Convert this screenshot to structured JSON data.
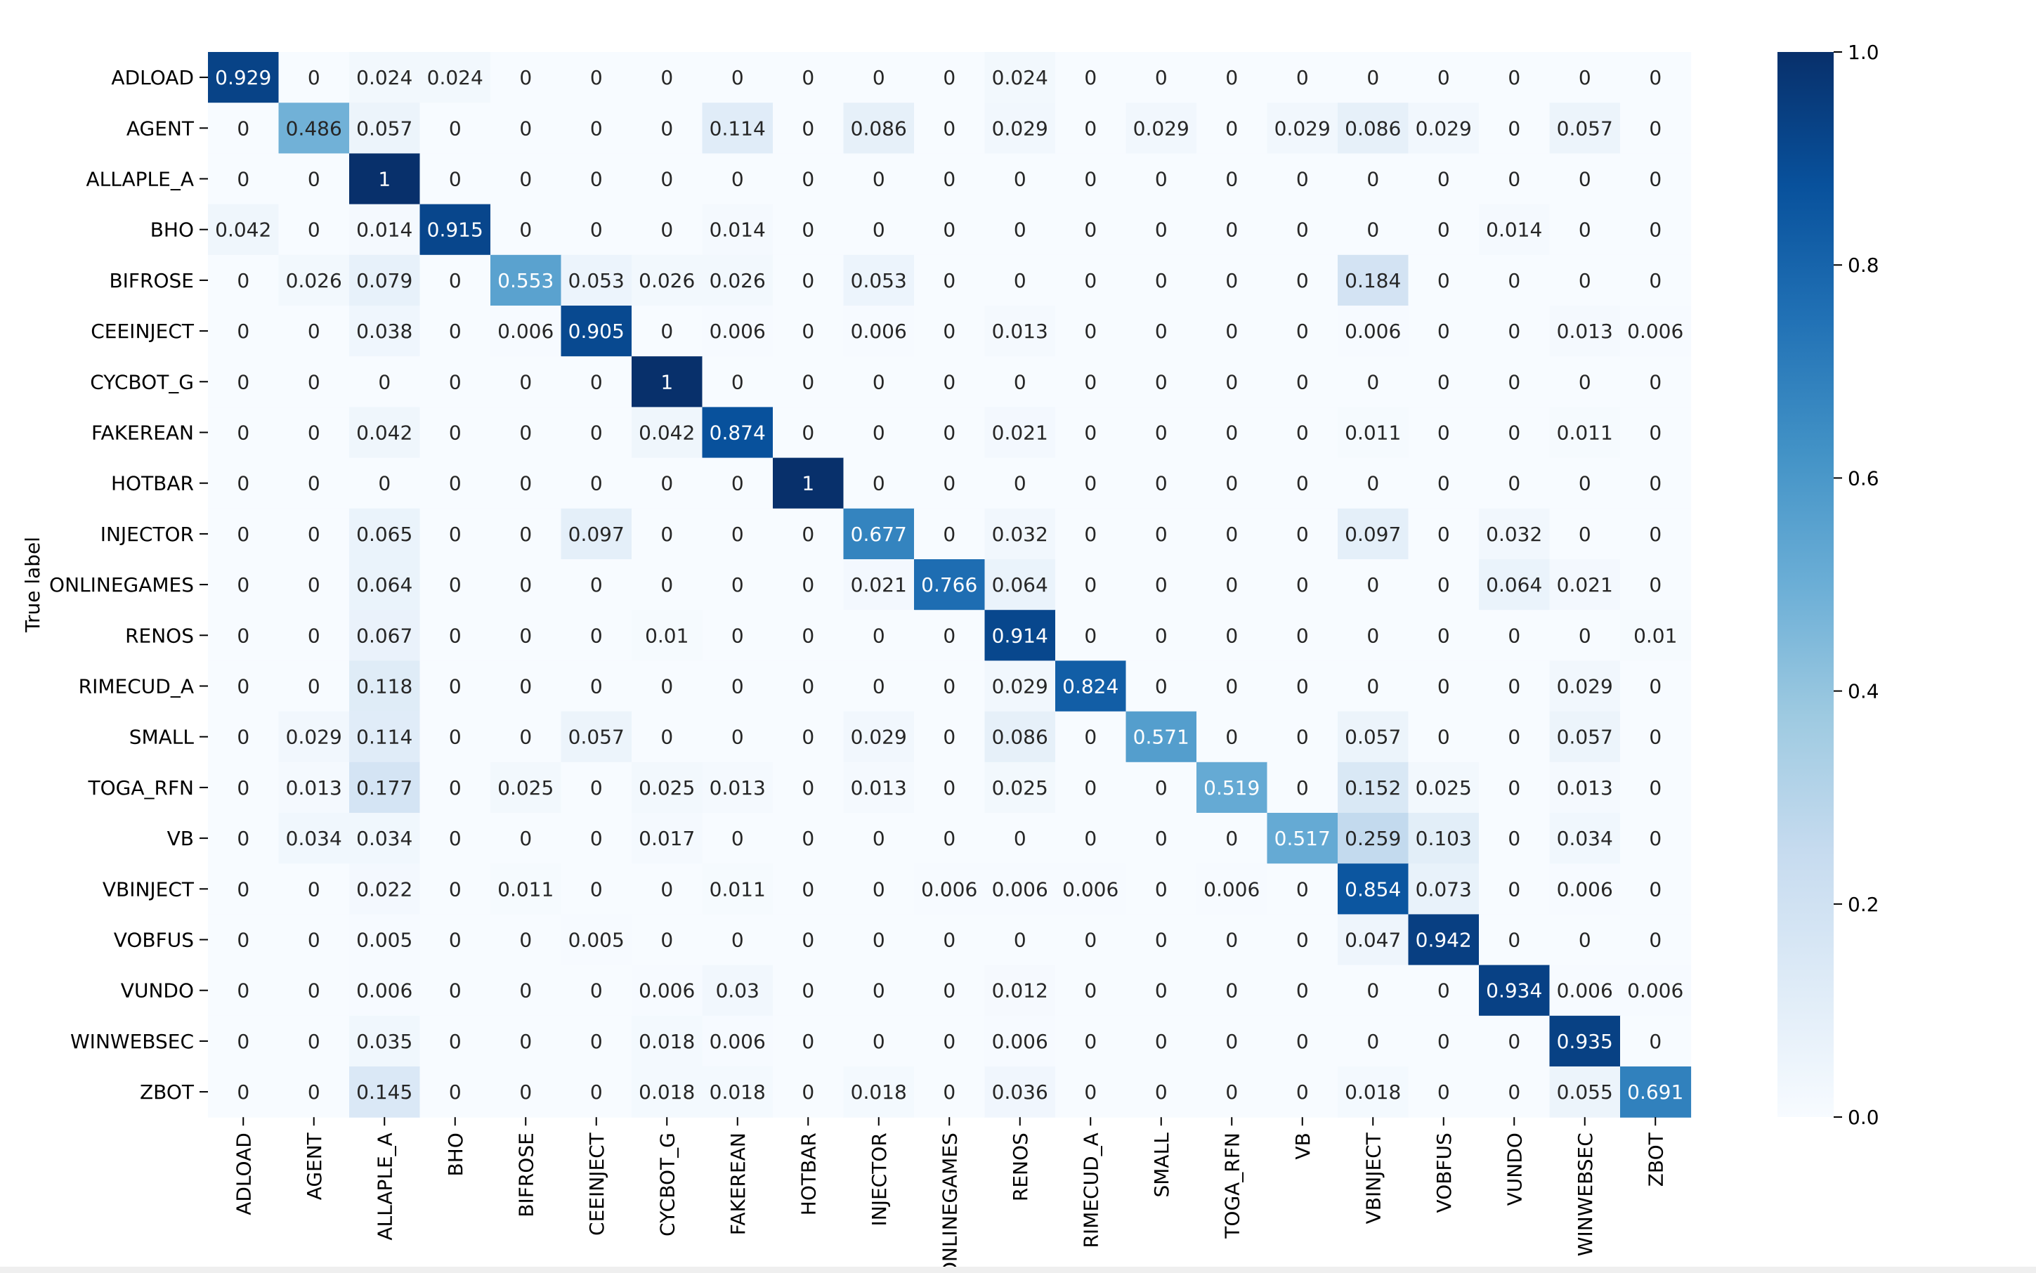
{
  "chart_data": {
    "type": "heatmap",
    "title": "",
    "xlabel": "",
    "ylabel": "True label",
    "rows": [
      "ADLOAD",
      "AGENT",
      "ALLAPLE_A",
      "BHO",
      "BIFROSE",
      "CEEINJECT",
      "CYCBOT_G",
      "FAKEREAN",
      "HOTBAR",
      "INJECTOR",
      "ONLINEGAMES",
      "RENOS",
      "RIMECUD_A",
      "SMALL",
      "TOGA_RFN",
      "VB",
      "VBINJECT",
      "VOBFUS",
      "VUNDO",
      "WINWEBSEC",
      "ZBOT"
    ],
    "columns": [
      "ADLOAD",
      "AGENT",
      "ALLAPLE_A",
      "BHO",
      "BIFROSE",
      "CEEINJECT",
      "CYCBOT_G",
      "FAKEREAN",
      "HOTBAR",
      "INJECTOR",
      "ONLINEGAMES",
      "RENOS",
      "RIMECUD_A",
      "SMALL",
      "TOGA_RFN",
      "VB",
      "VBINJECT",
      "VOBFUS",
      "VUNDO",
      "WINWEBSEC",
      "ZBOT"
    ],
    "values": [
      [
        "0.929",
        "0",
        "0.024",
        "0.024",
        "0",
        "0",
        "0",
        "0",
        "0",
        "0",
        "0",
        "0.024",
        "0",
        "0",
        "0",
        "0",
        "0",
        "0",
        "0",
        "0",
        "0"
      ],
      [
        "0",
        "0.486",
        "0.057",
        "0",
        "0",
        "0",
        "0",
        "0.114",
        "0",
        "0.086",
        "0",
        "0.029",
        "0",
        "0.029",
        "0",
        "0.029",
        "0.086",
        "0.029",
        "0",
        "0.057",
        "0"
      ],
      [
        "0",
        "0",
        "1",
        "0",
        "0",
        "0",
        "0",
        "0",
        "0",
        "0",
        "0",
        "0",
        "0",
        "0",
        "0",
        "0",
        "0",
        "0",
        "0",
        "0",
        "0"
      ],
      [
        "0.042",
        "0",
        "0.014",
        "0.915",
        "0",
        "0",
        "0",
        "0.014",
        "0",
        "0",
        "0",
        "0",
        "0",
        "0",
        "0",
        "0",
        "0",
        "0",
        "0.014",
        "0",
        "0"
      ],
      [
        "0",
        "0.026",
        "0.079",
        "0",
        "0.553",
        "0.053",
        "0.026",
        "0.026",
        "0",
        "0.053",
        "0",
        "0",
        "0",
        "0",
        "0",
        "0",
        "0.184",
        "0",
        "0",
        "0",
        "0"
      ],
      [
        "0",
        "0",
        "0.038",
        "0",
        "0.006",
        "0.905",
        "0",
        "0.006",
        "0",
        "0.006",
        "0",
        "0.013",
        "0",
        "0",
        "0",
        "0",
        "0.006",
        "0",
        "0",
        "0.013",
        "0.006"
      ],
      [
        "0",
        "0",
        "0",
        "0",
        "0",
        "0",
        "1",
        "0",
        "0",
        "0",
        "0",
        "0",
        "0",
        "0",
        "0",
        "0",
        "0",
        "0",
        "0",
        "0",
        "0"
      ],
      [
        "0",
        "0",
        "0.042",
        "0",
        "0",
        "0",
        "0.042",
        "0.874",
        "0",
        "0",
        "0",
        "0.021",
        "0",
        "0",
        "0",
        "0",
        "0.011",
        "0",
        "0",
        "0.011",
        "0"
      ],
      [
        "0",
        "0",
        "0",
        "0",
        "0",
        "0",
        "0",
        "0",
        "1",
        "0",
        "0",
        "0",
        "0",
        "0",
        "0",
        "0",
        "0",
        "0",
        "0",
        "0",
        "0"
      ],
      [
        "0",
        "0",
        "0.065",
        "0",
        "0",
        "0.097",
        "0",
        "0",
        "0",
        "0.677",
        "0",
        "0.032",
        "0",
        "0",
        "0",
        "0",
        "0.097",
        "0",
        "0.032",
        "0",
        "0"
      ],
      [
        "0",
        "0",
        "0.064",
        "0",
        "0",
        "0",
        "0",
        "0",
        "0",
        "0.021",
        "0.766",
        "0.064",
        "0",
        "0",
        "0",
        "0",
        "0",
        "0",
        "0.064",
        "0.021",
        "0"
      ],
      [
        "0",
        "0",
        "0.067",
        "0",
        "0",
        "0",
        "0.01",
        "0",
        "0",
        "0",
        "0",
        "0.914",
        "0",
        "0",
        "0",
        "0",
        "0",
        "0",
        "0",
        "0",
        "0.01"
      ],
      [
        "0",
        "0",
        "0.118",
        "0",
        "0",
        "0",
        "0",
        "0",
        "0",
        "0",
        "0",
        "0.029",
        "0.824",
        "0",
        "0",
        "0",
        "0",
        "0",
        "0",
        "0.029",
        "0"
      ],
      [
        "0",
        "0.029",
        "0.114",
        "0",
        "0",
        "0.057",
        "0",
        "0",
        "0",
        "0.029",
        "0",
        "0.086",
        "0",
        "0.571",
        "0",
        "0",
        "0.057",
        "0",
        "0",
        "0.057",
        "0"
      ],
      [
        "0",
        "0.013",
        "0.177",
        "0",
        "0.025",
        "0",
        "0.025",
        "0.013",
        "0",
        "0.013",
        "0",
        "0.025",
        "0",
        "0",
        "0.519",
        "0",
        "0.152",
        "0.025",
        "0",
        "0.013",
        "0"
      ],
      [
        "0",
        "0.034",
        "0.034",
        "0",
        "0",
        "0",
        "0.017",
        "0",
        "0",
        "0",
        "0",
        "0",
        "0",
        "0",
        "0",
        "0.517",
        "0.259",
        "0.103",
        "0",
        "0.034",
        "0"
      ],
      [
        "0",
        "0",
        "0.022",
        "0",
        "0.011",
        "0",
        "0",
        "0.011",
        "0",
        "0",
        "0.006",
        "0.006",
        "0.006",
        "0",
        "0.006",
        "0",
        "0.854",
        "0.073",
        "0",
        "0.006",
        "0"
      ],
      [
        "0",
        "0",
        "0.005",
        "0",
        "0",
        "0.005",
        "0",
        "0",
        "0",
        "0",
        "0",
        "0",
        "0",
        "0",
        "0",
        "0",
        "0.047",
        "0.942",
        "0",
        "0",
        "0"
      ],
      [
        "0",
        "0",
        "0.006",
        "0",
        "0",
        "0",
        "0.006",
        "0.03",
        "0",
        "0",
        "0",
        "0.012",
        "0",
        "0",
        "0",
        "0",
        "0",
        "0",
        "0.934",
        "0.006",
        "0.006"
      ],
      [
        "0",
        "0",
        "0.035",
        "0",
        "0",
        "0",
        "0.018",
        "0.006",
        "0",
        "0",
        "0",
        "0.006",
        "0",
        "0",
        "0",
        "0",
        "0",
        "0",
        "0",
        "0.935",
        "0"
      ],
      [
        "0",
        "0",
        "0.145",
        "0",
        "0",
        "0",
        "0.018",
        "0.018",
        "0",
        "0.018",
        "0",
        "0.036",
        "0",
        "0",
        "0",
        "0",
        "0.018",
        "0",
        "0",
        "0.055",
        "0.691"
      ]
    ],
    "colorbar": {
      "range": [
        0.0,
        1.0
      ],
      "ticks": [
        "0.0",
        "0.2",
        "0.4",
        "0.6",
        "0.8",
        "1.0"
      ],
      "colormap": "Blues",
      "stops": [
        "#f7fbff",
        "#deebf7",
        "#c6dbef",
        "#9ecae1",
        "#6baed6",
        "#4292c6",
        "#2171b5",
        "#08519c",
        "#08306b"
      ]
    }
  }
}
